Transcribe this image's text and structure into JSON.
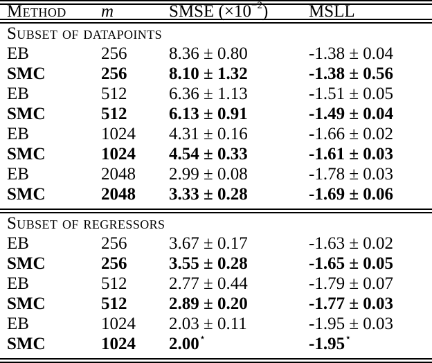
{
  "colors": {
    "text": "#000000",
    "background": "#ffffff",
    "rule": "#000000"
  },
  "table": {
    "header": {
      "method": "Method",
      "m": "m",
      "smse_prefix": "SMSE (×10",
      "smse_sup": "−2",
      "smse_suffix": ")",
      "msll": "MSLL"
    },
    "sections": [
      {
        "title": "Subset of datapoints",
        "rows": [
          {
            "method": "EB",
            "m": "256",
            "smse": "8.36 ± 0.80",
            "msll": "-1.38 ± 0.04",
            "bold": false
          },
          {
            "method": "SMC",
            "m": "256",
            "smse": "8.10 ± 1.32",
            "msll": "-1.38 ± 0.56",
            "bold": true
          },
          {
            "method": "EB",
            "m": "512",
            "smse": "6.36 ± 1.13",
            "msll": "-1.51 ± 0.05",
            "bold": false
          },
          {
            "method": "SMC",
            "m": "512",
            "smse": "6.13 ± 0.91",
            "msll": "-1.49 ± 0.04",
            "bold": true
          },
          {
            "method": "EB",
            "m": "1024",
            "smse": "4.31 ± 0.16",
            "msll": "-1.66 ± 0.02",
            "bold": false
          },
          {
            "method": "SMC",
            "m": "1024",
            "smse": "4.54 ± 0.33",
            "msll": "-1.61 ± 0.03",
            "bold": true
          },
          {
            "method": "EB",
            "m": "2048",
            "smse": "2.99 ± 0.08",
            "msll": "-1.78 ± 0.03",
            "bold": false
          },
          {
            "method": "SMC",
            "m": "2048",
            "smse": "3.33 ± 0.28",
            "msll": "-1.69 ± 0.06",
            "bold": true
          }
        ]
      },
      {
        "title": "Subset of regressors",
        "rows": [
          {
            "method": "EB",
            "m": "256",
            "smse": "3.67 ± 0.17",
            "msll": "-1.63 ± 0.02",
            "bold": false
          },
          {
            "method": "SMC",
            "m": "256",
            "smse": "3.55 ± 0.28",
            "msll": "-1.65 ± 0.05",
            "bold": true
          },
          {
            "method": "EB",
            "m": "512",
            "smse": "2.77 ± 0.44",
            "msll": "-1.79 ± 0.07",
            "bold": false
          },
          {
            "method": "SMC",
            "m": "512",
            "smse": "2.89 ± 0.20",
            "msll": "-1.77 ± 0.03",
            "bold": true
          },
          {
            "method": "EB",
            "m": "1024",
            "smse": "2.03 ± 0.11",
            "msll": "-1.95 ± 0.03",
            "bold": false
          },
          {
            "method": "SMC",
            "m": "1024",
            "smse": "2.00",
            "smse_sup": "⋆",
            "msll": "-1.95",
            "msll_sup": "⋆",
            "bold": true
          }
        ]
      }
    ]
  }
}
